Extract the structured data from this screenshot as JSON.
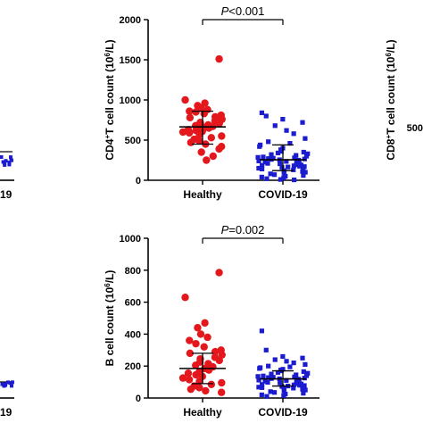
{
  "colors": {
    "healthy": "#e3171c",
    "covid": "#1b1bd0",
    "axis": "#000000"
  },
  "chart_data": [
    {
      "type": "scatter",
      "id": "partial-left-top",
      "xlabel": "",
      "ylabel": "",
      "categories": [],
      "tick_labels": [],
      "visible_labels": [
        "19"
      ],
      "series": [
        {
          "name": "",
          "values": [
            230,
            235,
            240,
            225,
            245,
            238,
            232,
            228,
            242,
            236
          ]
        }
      ]
    },
    {
      "type": "scatter",
      "id": "cd4",
      "title": "",
      "ylabel_main": "CD4",
      "ylabel_sup": "+",
      "ylabel_rest": "T cell count (10",
      "ylabel_unit_sup": "6",
      "ylabel_end": "/L)",
      "ylim": [
        0,
        2000
      ],
      "yticks": [
        0,
        500,
        1000,
        1500,
        2000
      ],
      "tick_labels": [
        "0",
        "500",
        "1000",
        "1500",
        "2000"
      ],
      "categories": [
        "Healthy",
        "COVID-19"
      ],
      "pvalue_prefix": "P",
      "pvalue_rest": "<0.001",
      "series": [
        {
          "category": "Healthy",
          "median": 665,
          "q1": 450,
          "q3": 860,
          "values": [
            1510,
            1000,
            960,
            930,
            900,
            880,
            860,
            850,
            830,
            810,
            790,
            780,
            760,
            740,
            720,
            710,
            700,
            690,
            680,
            670,
            660,
            650,
            640,
            630,
            620,
            610,
            600,
            590,
            570,
            550,
            530,
            510,
            490,
            470,
            450,
            420,
            390,
            350,
            300,
            250
          ]
        },
        {
          "category": "COVID-19",
          "median": 255,
          "q1": 120,
          "q3": 440,
          "values": [
            840,
            800,
            760,
            720,
            680,
            620,
            580,
            520,
            480,
            460,
            440,
            420,
            400,
            380,
            360,
            350,
            340,
            330,
            320,
            310,
            300,
            290,
            285,
            280,
            275,
            270,
            265,
            260,
            255,
            250,
            245,
            240,
            235,
            230,
            225,
            220,
            215,
            210,
            205,
            200,
            195,
            190,
            185,
            180,
            175,
            170,
            165,
            160,
            155,
            150,
            140,
            130,
            120,
            110,
            100,
            90,
            80,
            70,
            60,
            50,
            40,
            30,
            20,
            10,
            5
          ]
        }
      ]
    },
    {
      "type": "scatter",
      "id": "partial-right-top",
      "ylabel_main": "CD8",
      "ylabel_sup": "+",
      "ylabel_rest": "T cell count (10",
      "ylabel_unit_sup": "6",
      "ylabel_end": "/L)",
      "tick_labels": [
        "500"
      ],
      "categories": [],
      "series": []
    },
    {
      "type": "scatter",
      "id": "partial-left-bottom",
      "visible_labels": [
        "19"
      ],
      "series": [
        {
          "name": "",
          "values": [
            90,
            95,
            100,
            88,
            92,
            97,
            85,
            99
          ]
        }
      ]
    },
    {
      "type": "scatter",
      "id": "bcell",
      "title": "",
      "ylabel_main": "B cell count (10",
      "ylabel_unit_sup": "6",
      "ylabel_end": "/L)",
      "ylim": [
        0,
        1000
      ],
      "yticks": [
        0,
        200,
        400,
        600,
        800,
        1000
      ],
      "tick_labels": [
        "0",
        "200",
        "400",
        "600",
        "800",
        "1000"
      ],
      "categories": [
        "Healthy",
        "COVID-19"
      ],
      "pvalue_prefix": "P",
      "pvalue_rest": "=0.002",
      "series": [
        {
          "category": "Healthy",
          "median": 185,
          "q1": 90,
          "q3": 280,
          "values": [
            785,
            630,
            470,
            440,
            400,
            380,
            360,
            340,
            320,
            300,
            290,
            280,
            270,
            255,
            245,
            235,
            225,
            215,
            205,
            195,
            185,
            175,
            165,
            155,
            145,
            135,
            125,
            115,
            105,
            95,
            85,
            75,
            65,
            55,
            45,
            35
          ]
        },
        {
          "category": "COVID-19",
          "median": 120,
          "q1": 75,
          "q3": 170,
          "values": [
            420,
            300,
            260,
            250,
            240,
            230,
            220,
            210,
            200,
            195,
            190,
            185,
            180,
            175,
            170,
            165,
            160,
            155,
            150,
            145,
            140,
            138,
            135,
            132,
            130,
            128,
            125,
            122,
            120,
            118,
            115,
            112,
            110,
            108,
            105,
            102,
            100,
            98,
            95,
            92,
            90,
            88,
            85,
            82,
            80,
            78,
            75,
            72,
            70,
            68,
            65,
            62,
            60,
            55,
            50,
            45,
            40,
            35,
            30,
            25,
            20,
            15,
            10
          ]
        }
      ]
    }
  ]
}
